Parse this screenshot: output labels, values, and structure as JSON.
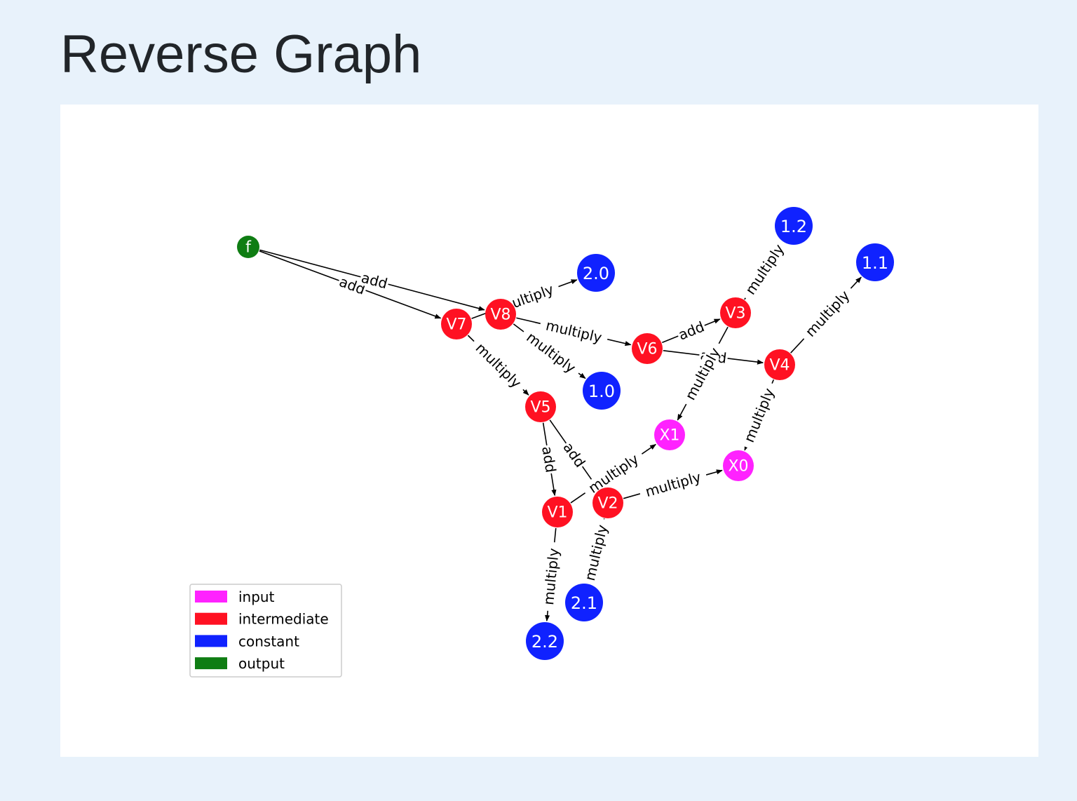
{
  "title": "Reverse Graph",
  "colors": {
    "input": "#ff22ff",
    "intermediate": "#ff1122",
    "constant": "#1022ff",
    "output": "#0f7d13"
  },
  "nodes": [
    {
      "id": "f",
      "label": "f",
      "kind": "output"
    },
    {
      "id": "V7",
      "label": "V7",
      "kind": "intermediate"
    },
    {
      "id": "V8",
      "label": "V8",
      "kind": "intermediate"
    },
    {
      "id": "V6",
      "label": "V6",
      "kind": "intermediate"
    },
    {
      "id": "V3",
      "label": "V3",
      "kind": "intermediate"
    },
    {
      "id": "V4",
      "label": "V4",
      "kind": "intermediate"
    },
    {
      "id": "V5",
      "label": "V5",
      "kind": "intermediate"
    },
    {
      "id": "V1",
      "label": "V1",
      "kind": "intermediate"
    },
    {
      "id": "V2",
      "label": "V2",
      "kind": "intermediate"
    },
    {
      "id": "X1",
      "label": "X1",
      "kind": "input"
    },
    {
      "id": "X0",
      "label": "X0",
      "kind": "input"
    },
    {
      "id": "c20",
      "label": "2.0",
      "kind": "constant"
    },
    {
      "id": "c10",
      "label": "1.0",
      "kind": "constant"
    },
    {
      "id": "c12",
      "label": "1.2",
      "kind": "constant"
    },
    {
      "id": "c11",
      "label": "1.1",
      "kind": "constant"
    },
    {
      "id": "c21",
      "label": "2.1",
      "kind": "constant"
    },
    {
      "id": "c22",
      "label": "2.2",
      "kind": "constant"
    }
  ],
  "edges": [
    {
      "from": "f",
      "to": "V7",
      "label": "add"
    },
    {
      "from": "f",
      "to": "V8",
      "label": "add"
    },
    {
      "from": "V7",
      "to": "V5",
      "label": "multiply"
    },
    {
      "from": "V7",
      "to": "c20",
      "label": "multiply"
    },
    {
      "from": "V8",
      "to": "V6",
      "label": "multiply"
    },
    {
      "from": "V8",
      "to": "c10",
      "label": "multiply"
    },
    {
      "from": "V6",
      "to": "V3",
      "label": "add"
    },
    {
      "from": "V6",
      "to": "V4",
      "label": "add"
    },
    {
      "from": "V3",
      "to": "X1",
      "label": "multiply"
    },
    {
      "from": "V3",
      "to": "c12",
      "label": "multiply"
    },
    {
      "from": "V4",
      "to": "X0",
      "label": "multiply"
    },
    {
      "from": "V4",
      "to": "c11",
      "label": "multiply"
    },
    {
      "from": "V5",
      "to": "V1",
      "label": "add"
    },
    {
      "from": "V5",
      "to": "V2",
      "label": "add"
    },
    {
      "from": "V1",
      "to": "X1",
      "label": "multiply"
    },
    {
      "from": "V1",
      "to": "c22",
      "label": "multiply"
    },
    {
      "from": "V2",
      "to": "X0",
      "label": "multiply"
    },
    {
      "from": "V2",
      "to": "c21",
      "label": "multiply"
    }
  ],
  "legend": [
    {
      "label": "input",
      "kind": "input"
    },
    {
      "label": "intermediate",
      "kind": "intermediate"
    },
    {
      "label": "constant",
      "kind": "constant"
    },
    {
      "label": "output",
      "kind": "output"
    }
  ]
}
